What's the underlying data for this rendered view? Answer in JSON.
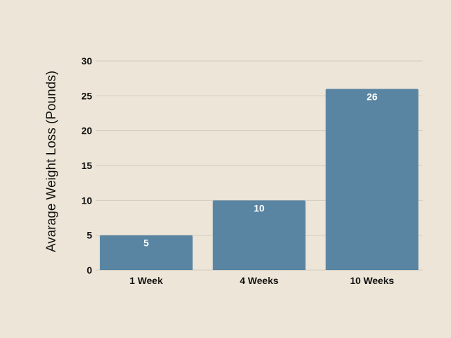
{
  "chart_data": {
    "type": "bar",
    "title": "",
    "xlabel": "",
    "ylabel": "Avarage Weight Loss (Pounds)",
    "categories": [
      "1 Week",
      "4 Weeks",
      "10 Weeks"
    ],
    "values": [
      5,
      10,
      26
    ],
    "data_labels": [
      "5",
      "10",
      "26"
    ],
    "ylim": [
      0,
      30
    ],
    "yticks": [
      0,
      5,
      10,
      15,
      20,
      25,
      30
    ],
    "grid": true,
    "legend": "none",
    "colors": {
      "bar": "#5985a3",
      "background": "#ede6d8",
      "grid": "#d3cbbd",
      "text": "#111111",
      "data_label": "#ffffff"
    }
  }
}
